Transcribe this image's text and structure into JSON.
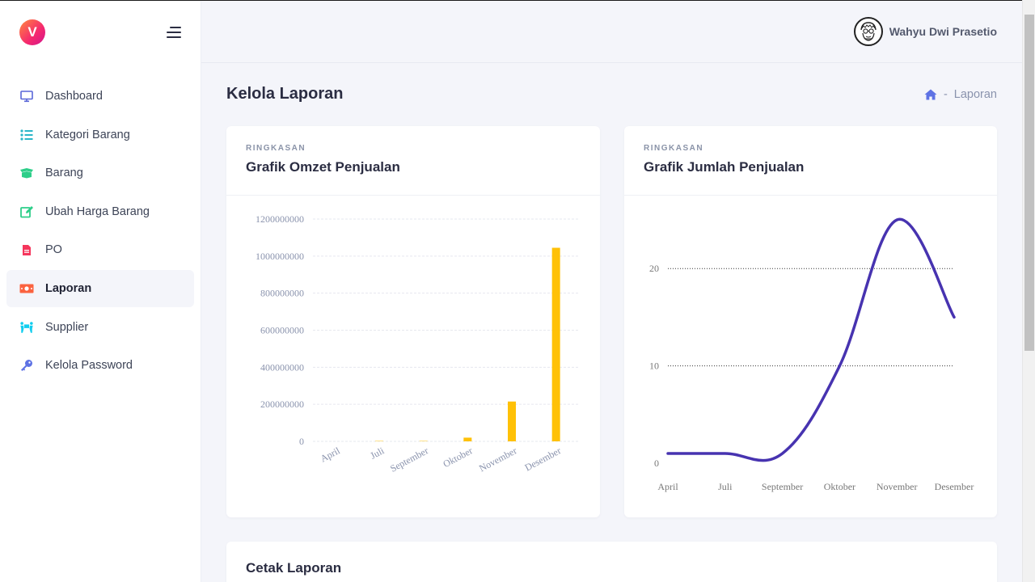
{
  "sidebar": {
    "logo_letter": "V",
    "items": [
      {
        "label": "Dashboard",
        "icon": "monitor-icon",
        "color": "#5a67d8"
      },
      {
        "label": "Kategori Barang",
        "icon": "list-icon",
        "color": "#2bb6c9"
      },
      {
        "label": "Barang",
        "icon": "box-open-icon",
        "color": "#2dce89"
      },
      {
        "label": "Ubah Harga Barang",
        "icon": "edit-icon",
        "color": "#2dce89"
      },
      {
        "label": "PO",
        "icon": "file-icon",
        "color": "#f5365c"
      },
      {
        "label": "Laporan",
        "icon": "money-bill-icon",
        "color": "#fb6340",
        "active": true
      },
      {
        "label": "Supplier",
        "icon": "people-carry-icon",
        "color": "#11cdef"
      },
      {
        "label": "Kelola Password",
        "icon": "key-icon",
        "color": "#5e72e4"
      }
    ]
  },
  "header": {
    "user_name": "Wahyu Dwi Prasetio"
  },
  "page": {
    "title": "Kelola Laporan",
    "breadcrumb": {
      "separator": "-",
      "current": "Laporan"
    }
  },
  "cards": {
    "omzet": {
      "subtitle": "RINGKASAN",
      "title": "Grafik Omzet Penjualan"
    },
    "jumlah": {
      "subtitle": "RINGKASAN",
      "title": "Grafik Jumlah Penjualan"
    },
    "cetak": {
      "title": "Cetak Laporan"
    }
  },
  "chart_data": [
    {
      "type": "bar",
      "categories": [
        "April",
        "Juli",
        "September",
        "Oktober",
        "November",
        "Desember"
      ],
      "values": [
        0,
        2000000,
        2000000,
        20000000,
        215000000,
        1045000000
      ],
      "ylim": [
        0,
        1200000000
      ],
      "yticks": [
        0,
        200000000,
        400000000,
        600000000,
        800000000,
        1000000000,
        1200000000
      ],
      "color": "#ffc107",
      "grid": true
    },
    {
      "type": "line",
      "categories": [
        "April",
        "Juli",
        "September",
        "Oktober",
        "November",
        "Desember"
      ],
      "values": [
        1,
        1,
        1,
        10,
        25,
        15
      ],
      "ylim": [
        0,
        25
      ],
      "yticks": [
        0,
        10,
        20
      ],
      "color": "#4733b0",
      "grid": true
    }
  ]
}
